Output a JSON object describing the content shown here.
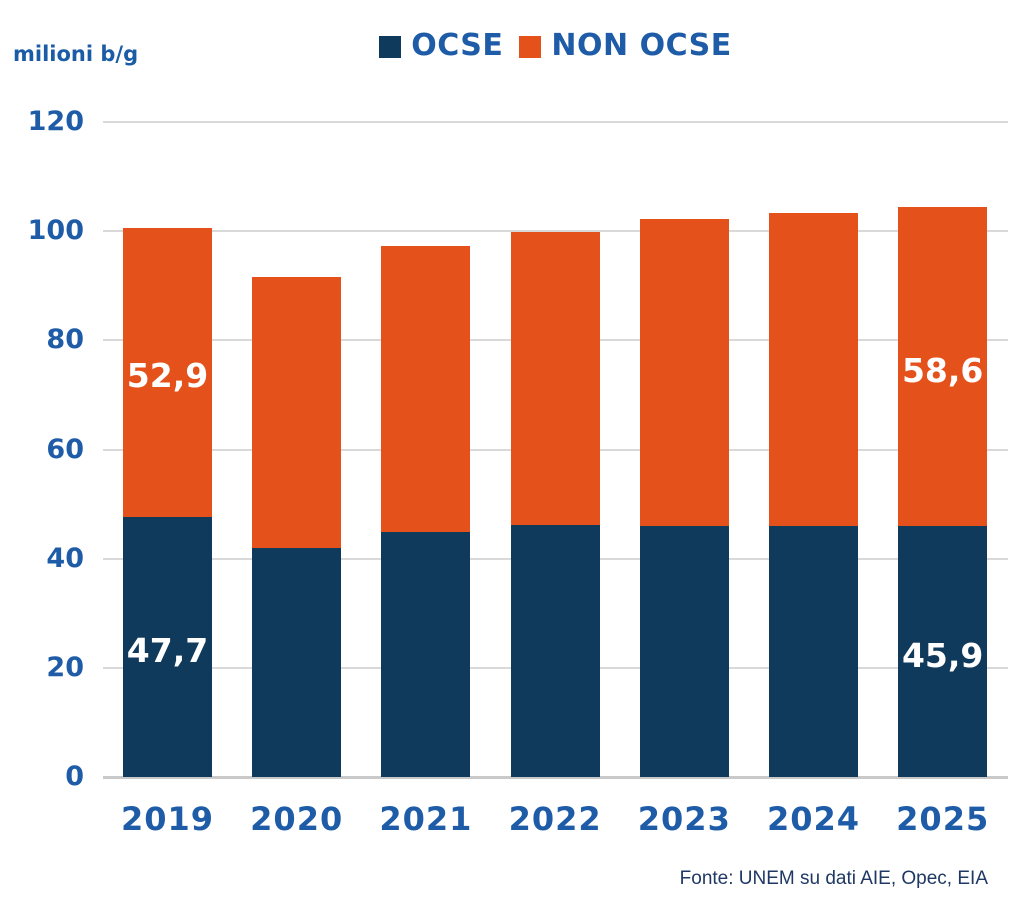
{
  "chart_data": {
    "type": "bar",
    "stacked": true,
    "title": "",
    "unit_label": "milioni b/g",
    "categories": [
      "2019",
      "2020",
      "2021",
      "2022",
      "2023",
      "2024",
      "2025"
    ],
    "series": [
      {
        "name": "OCSE",
        "color": "#0F3A5C",
        "values": [
          47.7,
          42.0,
          44.8,
          46.1,
          46.0,
          46.0,
          45.9
        ],
        "labels": [
          "47,7",
          null,
          null,
          null,
          null,
          null,
          "45,9"
        ]
      },
      {
        "name": "NON OCSE",
        "color": "#E4511B",
        "values": [
          52.9,
          49.6,
          52.5,
          53.7,
          56.2,
          57.3,
          58.6
        ],
        "labels": [
          "52,9",
          null,
          null,
          null,
          null,
          null,
          "58,6"
        ]
      }
    ],
    "totals": [
      100.6,
      91.6,
      97.3,
      99.8,
      102.2,
      103.3,
      104.5
    ],
    "ylim": [
      0,
      120
    ],
    "yticks": [
      0,
      20,
      40,
      60,
      80,
      100,
      120
    ],
    "grid": true,
    "legend_position": "top-center",
    "source": "Fonte: UNEM su dati AIE, Opec, EIA"
  },
  "colors": {
    "axis_text": "#1E5CA8",
    "unit_text": "#1B5CA6",
    "gridline": "#D9D9D9",
    "baseline": "#C9C9C9",
    "bar_label_text": "#FFFFFF",
    "source_text": "#1F3864",
    "background": "#FFFFFF"
  }
}
